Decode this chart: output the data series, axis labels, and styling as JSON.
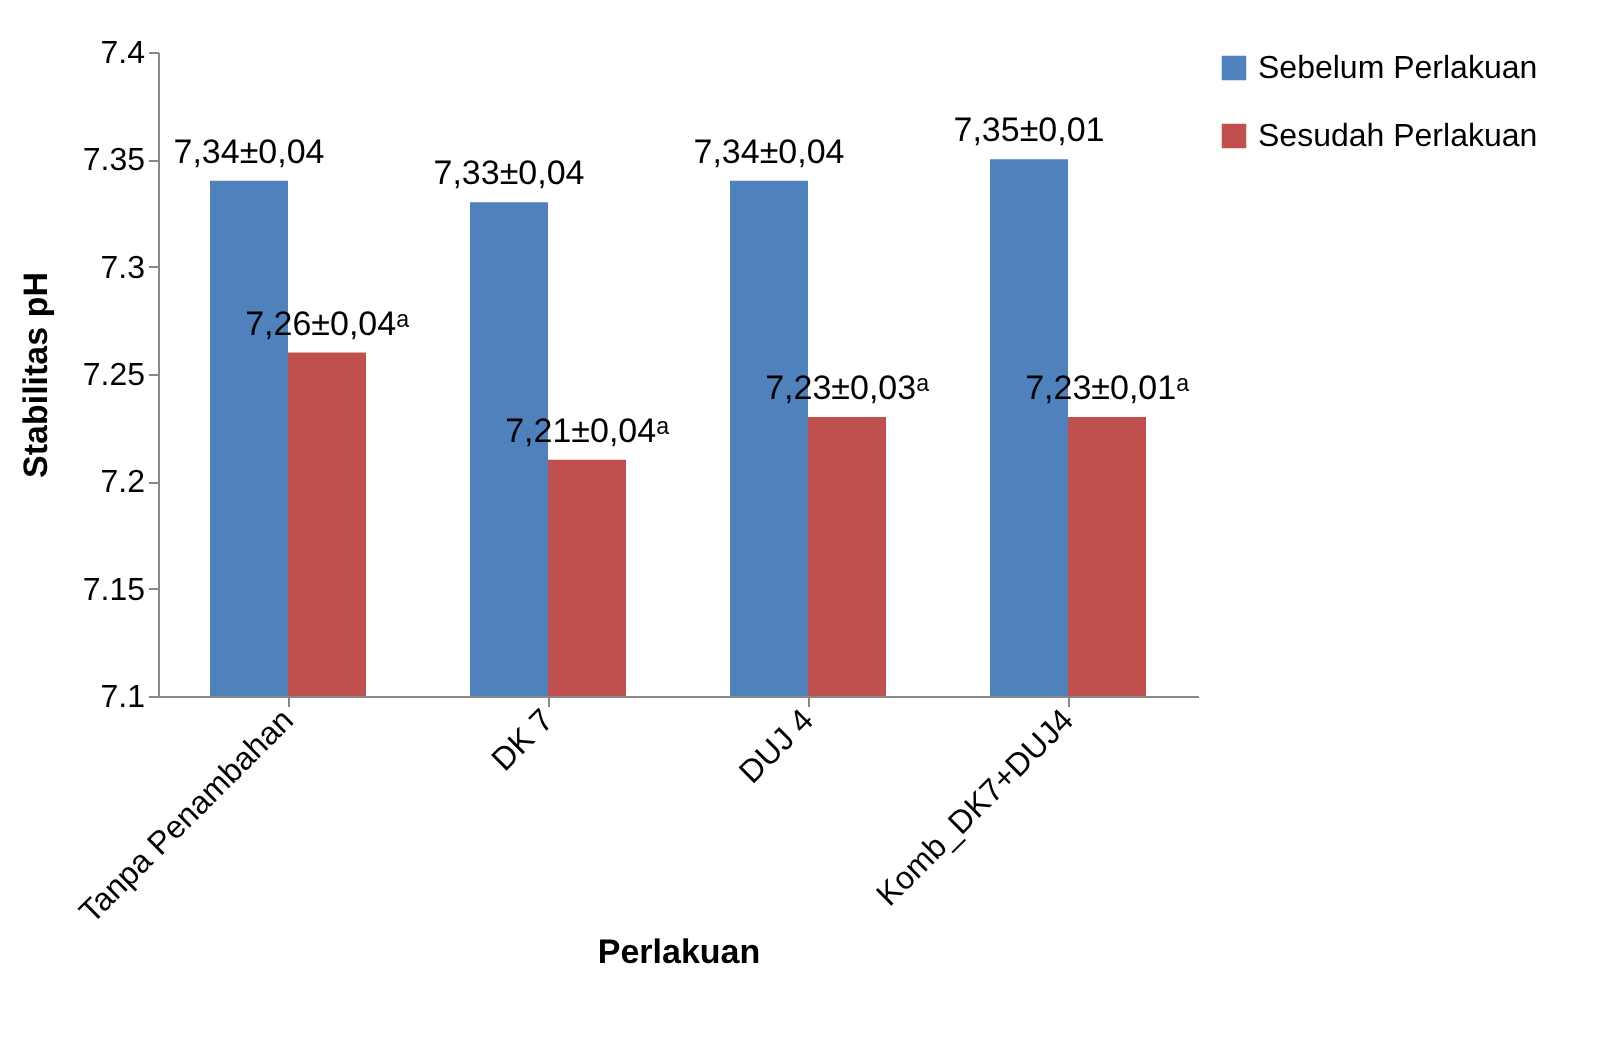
{
  "chart_data": {
    "type": "bar",
    "xlabel": "Perlakuan",
    "ylabel": "Stabilitas pH",
    "categories": [
      "Tanpa Penambahan",
      "DK 7",
      "DUJ 4",
      "Komb_DK7+DUJ4"
    ],
    "series": [
      {
        "name": "Sebelum Perlakuan",
        "color": "#4f81bd",
        "values": [
          7.34,
          7.33,
          7.34,
          7.35
        ],
        "value_labels": [
          "7,34±0,04",
          "7,33±0,04",
          "7,34±0,04",
          "7,35±0,01"
        ]
      },
      {
        "name": "Sesudah Perlakuan",
        "color": "#c0504d",
        "values": [
          7.26,
          7.21,
          7.23,
          7.23
        ],
        "value_labels": [
          "7,26±0,04ᵃ",
          "7,21±0,04ᵃ",
          "7,23±0,03ᵃ",
          "7,23±0,01ᵃ"
        ]
      }
    ],
    "ylim": [
      7.1,
      7.4
    ],
    "yticks": [
      7.1,
      7.15,
      7.2,
      7.25,
      7.3,
      7.35,
      7.4
    ],
    "grid": false,
    "legend": "right"
  }
}
